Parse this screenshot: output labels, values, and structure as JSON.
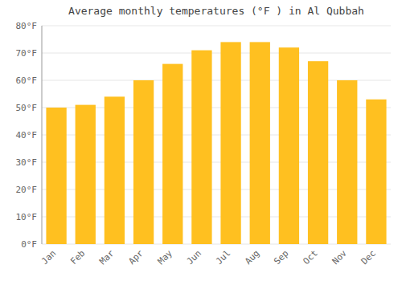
{
  "chart_data": {
    "type": "bar",
    "title": "Average monthly temperatures (°F ) in Al Qubbah",
    "categories": [
      "Jan",
      "Feb",
      "Mar",
      "Apr",
      "May",
      "Jun",
      "Jul",
      "Aug",
      "Sep",
      "Oct",
      "Nov",
      "Dec"
    ],
    "values": [
      50,
      51,
      54,
      60,
      66,
      71,
      74,
      74,
      72,
      67,
      60,
      53
    ],
    "color": "#FFC020",
    "ylim": [
      0,
      80
    ],
    "yticks": [
      {
        "value": 0,
        "label": "0°F"
      },
      {
        "value": 10,
        "label": "10°F"
      },
      {
        "value": 20,
        "label": "20°F"
      },
      {
        "value": 30,
        "label": "30°F"
      },
      {
        "value": 40,
        "label": "40°F"
      },
      {
        "value": 50,
        "label": "50°F"
      },
      {
        "value": 60,
        "label": "60°F"
      },
      {
        "value": 70,
        "label": "70°F"
      },
      {
        "value": 80,
        "label": "80°F"
      }
    ],
    "grid": true
  }
}
